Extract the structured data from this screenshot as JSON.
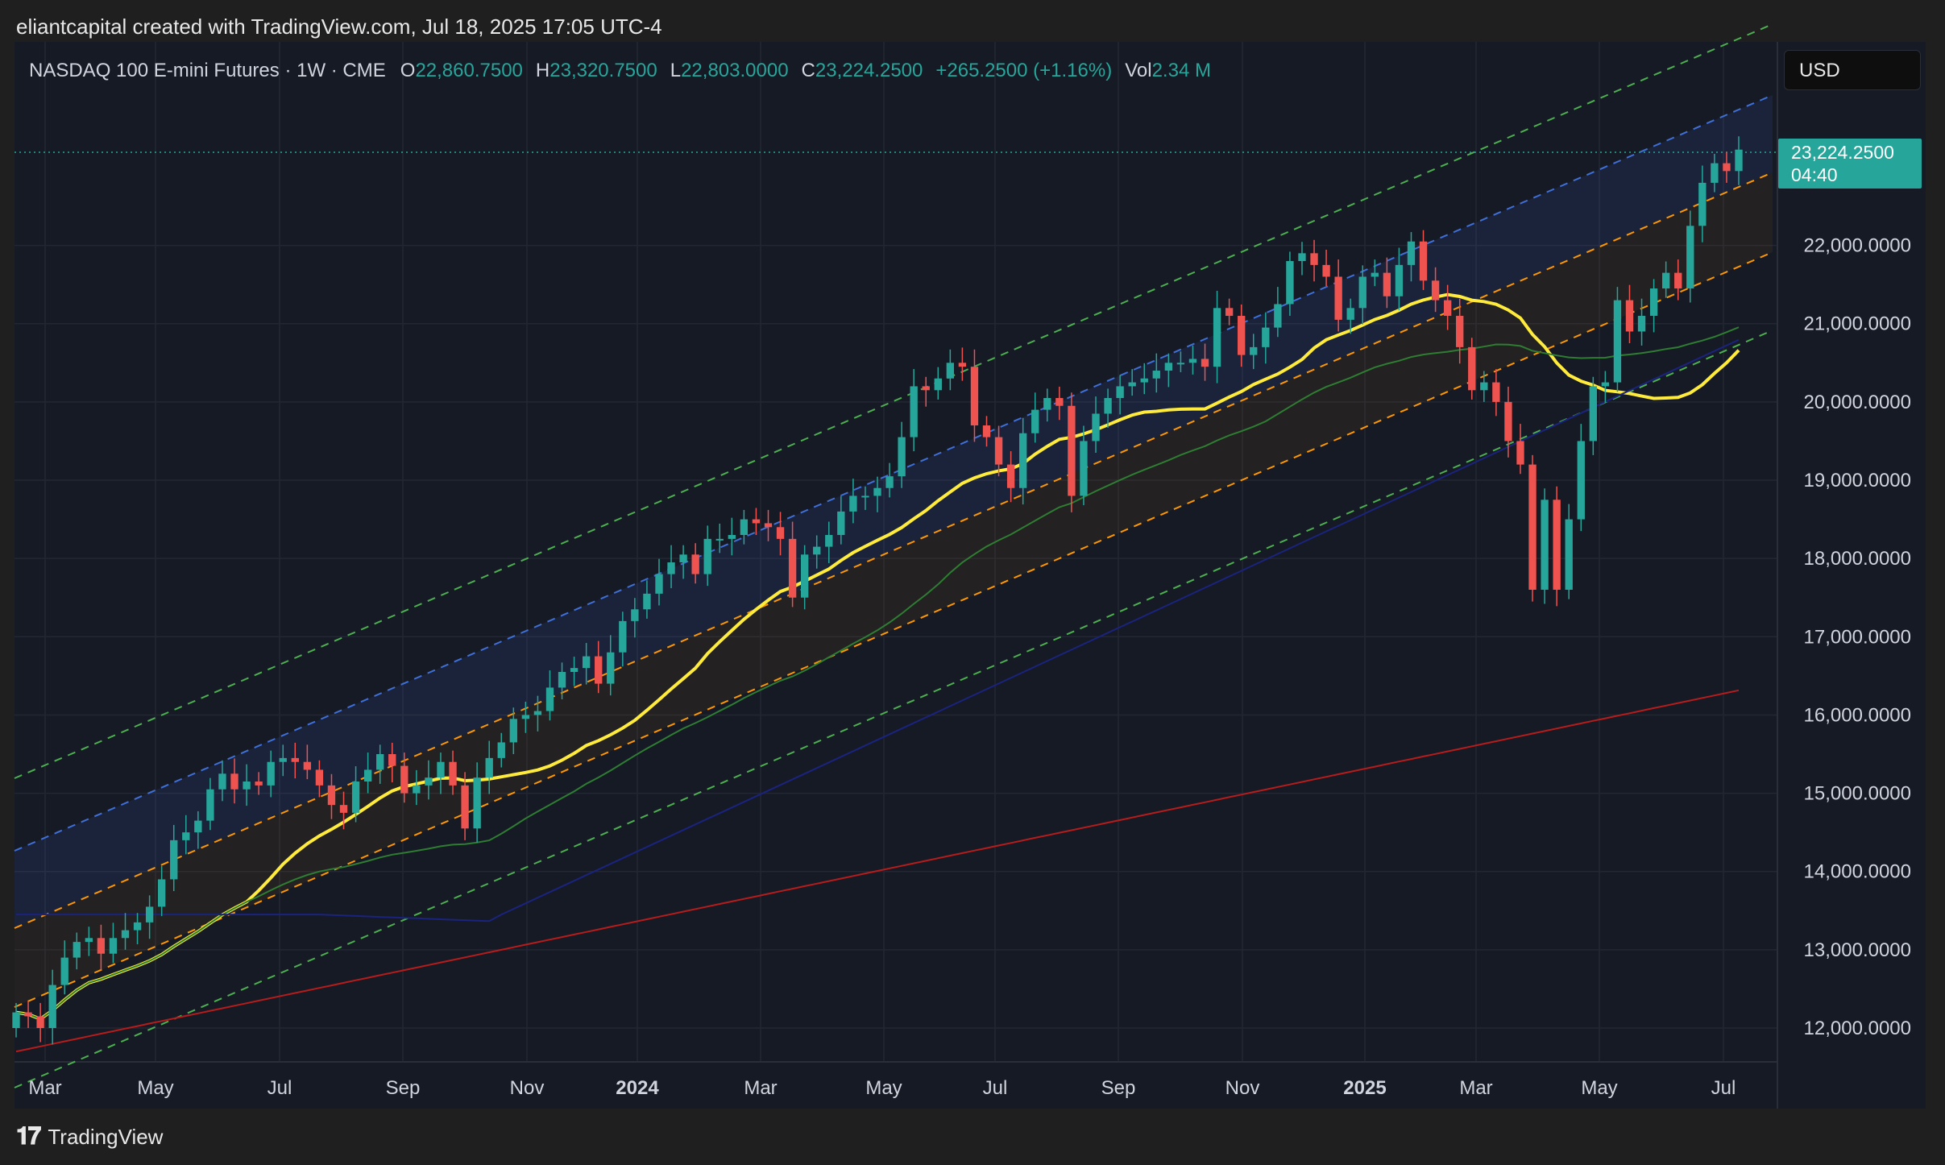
{
  "header": {
    "credit": "eliantcapital created with TradingView.com, Jul 18, 2025 17:05 UTC-4"
  },
  "legend": {
    "symbol": "NASDAQ 100 E-mini Futures · 1W · CME",
    "o_label": "O",
    "o_value": "22,860.7500",
    "h_label": "H",
    "h_value": "23,320.7500",
    "l_label": "L",
    "l_value": "22,803.0000",
    "c_label": "C",
    "c_value": "23,224.2500",
    "change": "+265.2500 (+1.16%)",
    "vol_label": "Vol",
    "vol_value": "2.34 M"
  },
  "currency_button": "USD",
  "price_tag": {
    "price": "23,224.2500",
    "countdown": "04:40"
  },
  "footer": {
    "brand": "TradingView",
    "logo_icon": "tradingview-logo-icon"
  },
  "colors": {
    "up": "#26a69a",
    "down": "#ef5350",
    "ema20": "#ffeb3b",
    "ma50": "#2e7d32",
    "ma100": "#1a237e",
    "ma200": "#b71c1c",
    "channel_blue": "#3f6fd8",
    "channel_orange": "#ff9800",
    "channel_green": "#4caf50"
  },
  "chart_data": {
    "type": "candlestick",
    "title": "NASDAQ 100 E-mini Futures · 1W · CME",
    "x_tick_labels": [
      "Mar",
      "May",
      "Jul",
      "Sep",
      "Nov",
      "2024",
      "Mar",
      "May",
      "Jul",
      "Sep",
      "Nov",
      "2025",
      "Mar",
      "May",
      "Jul"
    ],
    "y_tick_labels": [
      "12,000.0000",
      "13,000.0000",
      "14,000.0000",
      "15,000.0000",
      "16,000.0000",
      "17,000.0000",
      "18,000.0000",
      "19,000.0000",
      "20,000.0000",
      "21,000.0000",
      "22,000.0000"
    ],
    "y_ticks": [
      12000,
      13000,
      14000,
      15000,
      16000,
      17000,
      18000,
      19000,
      20000,
      21000,
      22000
    ],
    "ylim": [
      11550,
      24550
    ],
    "x_range_weeks": [
      0,
      142
    ],
    "last_price": 23224.25,
    "candles_start": "2023-02-24",
    "candle_close_estimates": [
      12200,
      12150,
      12000,
      12550,
      12900,
      13100,
      13150,
      12950,
      13150,
      13250,
      13350,
      13550,
      13900,
      14400,
      14500,
      14650,
      15050,
      15250,
      15050,
      15150,
      15100,
      15400,
      15450,
      15400,
      15300,
      15100,
      14850,
      14750,
      15150,
      15300,
      15500,
      15350,
      15000,
      15100,
      15200,
      15400,
      15100,
      14550,
      15200,
      15450,
      15650,
      15950,
      16000,
      16050,
      16350,
      16550,
      16600,
      16750,
      16400,
      16800,
      17200,
      17350,
      17550,
      17800,
      17950,
      18050,
      17800,
      18250,
      18250,
      18300,
      18500,
      18450,
      18400,
      18250,
      17500,
      18050,
      18150,
      18300,
      18600,
      18800,
      18800,
      18900,
      19050,
      19550,
      20200,
      20150,
      20300,
      20500,
      20450,
      19700,
      19550,
      19200,
      18900,
      19600,
      19900,
      20050,
      19950,
      18800,
      19500,
      19850,
      20050,
      20200,
      20250,
      20300,
      20400,
      20500,
      20500,
      20550,
      20450,
      21200,
      21100,
      20600,
      20700,
      20950,
      21250,
      21800,
      21900,
      21750,
      21600,
      21050,
      21200,
      21600,
      21650,
      21350,
      21750,
      22050,
      21550,
      21300,
      21100,
      20700,
      20150,
      20250,
      20000,
      19500,
      19200,
      17600,
      18750,
      17600,
      18500,
      19500,
      20200,
      20250,
      21300,
      20900,
      21100,
      21450,
      21650,
      21450,
      22250,
      22800,
      23050,
      22950,
      23224
    ]
  }
}
